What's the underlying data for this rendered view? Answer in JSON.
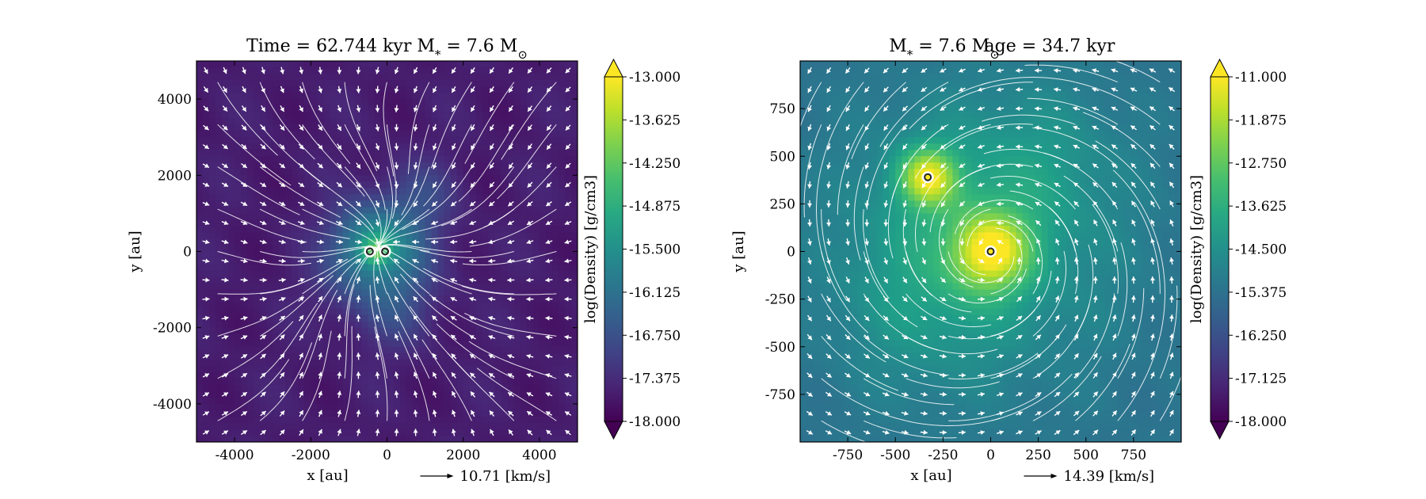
{
  "chart_data": [
    {
      "type": "heatmap",
      "title_parts": [
        "Time = 62.744 kyr",
        "M",
        "*",
        " = 7.6 M",
        "⊙"
      ],
      "xlabel": "x [au]",
      "ylabel": "y [au]",
      "xlim": [
        -5000,
        5000
      ],
      "ylim": [
        -5000,
        5000
      ],
      "xticks": [
        -4000,
        -2000,
        0,
        2000,
        4000
      ],
      "yticks": [
        -4000,
        -2000,
        0,
        2000,
        4000
      ],
      "colorbar": {
        "label": "log(Density) [g/cm3]",
        "range": [
          -18.0,
          -13.0
        ],
        "ticks": [
          "-13.000",
          "-13.625",
          "-14.250",
          "-14.875",
          "-15.500",
          "-16.125",
          "-16.750",
          "-17.375",
          "-18.000"
        ]
      },
      "reference_vector": {
        "value": 10.71,
        "label": "10.71 [km/s]"
      },
      "sinks": [
        {
          "x": -450,
          "y": 0
        },
        {
          "x": -50,
          "y": 0
        }
      ],
      "field": {
        "background": -17.6,
        "bumps": [
          [
            0,
            0,
            1200,
            1.6
          ],
          [
            -600,
            400,
            900,
            0.9
          ],
          [
            900,
            1500,
            900,
            0.6
          ],
          [
            200,
            -1600,
            1000,
            0.6
          ],
          [
            -1200,
            -800,
            900,
            0.4
          ],
          [
            -300,
            0,
            350,
            1.4
          ]
        ]
      },
      "flow": {
        "type": "collapse",
        "cx": -250,
        "cy": 0
      }
    },
    {
      "type": "heatmap",
      "title_parts": [
        "M",
        "*",
        " = 7.6 M",
        "⊙",
        "age = 34.7 kyr"
      ],
      "xlabel": "x [au]",
      "ylabel": "y [au]",
      "xlim": [
        -1000,
        1000
      ],
      "ylim": [
        -1000,
        1000
      ],
      "xticks": [
        -750,
        -500,
        -250,
        0,
        250,
        500,
        750
      ],
      "yticks": [
        750,
        500,
        250,
        0,
        -250,
        -500,
        -750
      ],
      "colorbar": {
        "label": "log(Density) [g/cm3]",
        "range": [
          -18.0,
          -11.0
        ],
        "ticks": [
          "-11.000",
          "-11.875",
          "-12.750",
          "-13.625",
          "-14.500",
          "-15.375",
          "-16.250",
          "-17.125",
          "-18.000"
        ]
      },
      "reference_vector": {
        "value": 14.39,
        "label": "14.39 [km/s]"
      },
      "sinks": [
        {
          "x": -330,
          "y": 390
        },
        {
          "x": 0,
          "y": 0
        }
      ],
      "field": {
        "background": -15.4,
        "bumps": [
          [
            -330,
            390,
            150,
            3.2
          ],
          [
            0,
            0,
            200,
            3.3
          ],
          [
            -100,
            150,
            600,
            0.9
          ],
          [
            300,
            500,
            400,
            0.4
          ],
          [
            -400,
            -300,
            450,
            0.5
          ],
          [
            0,
            0,
            900,
            0.6
          ]
        ]
      },
      "flow": {
        "type": "vortex",
        "cx": 0,
        "cy": 0
      }
    }
  ]
}
